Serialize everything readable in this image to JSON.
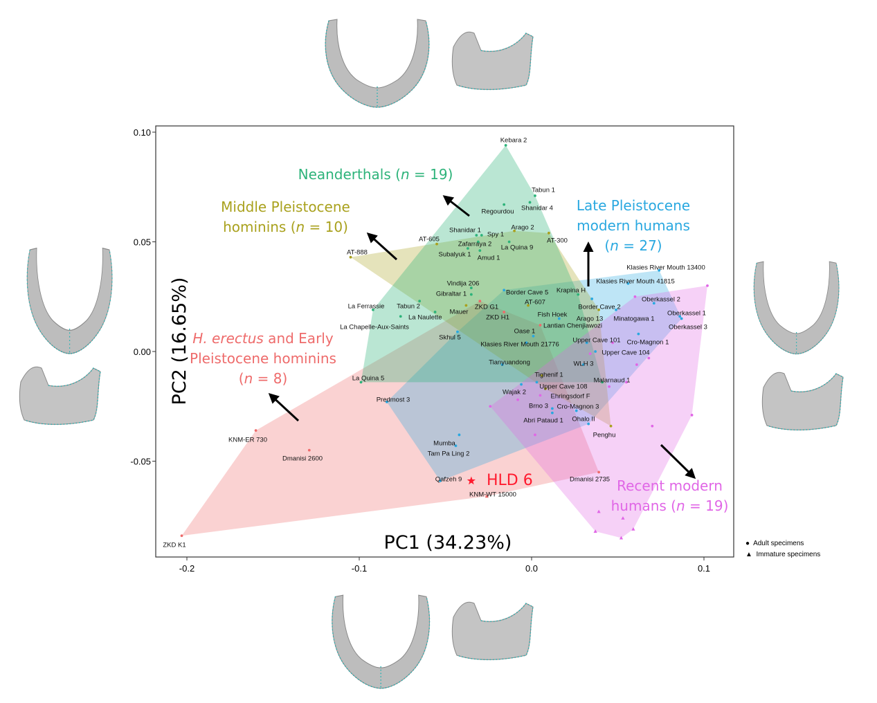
{
  "chart_data": {
    "type": "scatter",
    "xlabel": "PC1 (34.23%)",
    "ylabel": "PC2 (16.65%)",
    "xlim": [
      -0.22,
      0.117
    ],
    "ylim": [
      -0.094,
      0.103
    ],
    "xticks": [
      "-0.2",
      "-0.1",
      "0.0",
      "0.1"
    ],
    "xtick_values": [
      -0.2,
      -0.1,
      0.0,
      0.1
    ],
    "yticks": [
      "-0.05",
      "0.00",
      "0.05",
      "0.10"
    ],
    "ytick_values": [
      -0.05,
      0.0,
      0.05,
      0.1
    ],
    "grid": false,
    "hulls": true,
    "legend": {
      "placement": "bottom-right, outside",
      "entries": [
        {
          "marker": "circle",
          "label": "Adult specimens"
        },
        {
          "marker": "triangle",
          "label": "Immature specimens"
        }
      ]
    },
    "groups": [
      {
        "id": "erectus",
        "label_lines": [
          "H. erectus",
          " and Early",
          "Pleistocene hominins",
          "(n = 8)"
        ],
        "color": "#ee6b6b",
        "points": [
          {
            "name": "ZKD K1",
            "x": -0.203,
            "y": -0.084
          },
          {
            "name": "KNM-ER 730",
            "x": -0.16,
            "y": -0.036
          },
          {
            "name": "Dmanisi 2600",
            "x": -0.129,
            "y": -0.045
          },
          {
            "name": "Dmanisi 2735",
            "x": 0.039,
            "y": -0.055
          },
          {
            "name": "KNM-WT 15000",
            "x": -0.026,
            "y": -0.066,
            "marker": "triangle"
          },
          {
            "name": "ZKD G1",
            "x": -0.03,
            "y": 0.023
          },
          {
            "name": "ZKD H1",
            "x": -0.016,
            "y": 0.018
          },
          {
            "name": "Lantian Chenjiawozi",
            "x": 0.005,
            "y": 0.012
          }
        ]
      },
      {
        "id": "neanderthals",
        "label_lines": [
          "Neanderthals (",
          "n",
          " = 19)"
        ],
        "color": "#2db37a",
        "points": [
          {
            "name": "Kebara 2",
            "x": -0.015,
            "y": 0.094
          },
          {
            "name": "Tabun 1",
            "x": 0.002,
            "y": 0.071
          },
          {
            "name": "Shanidar 4",
            "x": -0.001,
            "y": 0.068
          },
          {
            "name": "Regourdou",
            "x": -0.016,
            "y": 0.067
          },
          {
            "name": "Shanidar 1",
            "x": -0.032,
            "y": 0.053
          },
          {
            "name": "Spy 1",
            "x": -0.029,
            "y": 0.053
          },
          {
            "name": "Zafarraya 2",
            "x": -0.031,
            "y": 0.05
          },
          {
            "name": "La Quina 9",
            "x": -0.013,
            "y": 0.05
          },
          {
            "name": "Subalyuk 1",
            "x": -0.037,
            "y": 0.047
          },
          {
            "name": "Amud 1",
            "x": -0.03,
            "y": 0.046
          },
          {
            "name": "Vindija 206",
            "x": -0.035,
            "y": 0.029
          },
          {
            "name": "Gibraltar 1",
            "x": -0.035,
            "y": 0.026
          },
          {
            "name": "La Ferrassie",
            "x": -0.092,
            "y": 0.019
          },
          {
            "name": "Tabun 2",
            "x": -0.065,
            "y": 0.023
          },
          {
            "name": "La Naulette",
            "x": -0.056,
            "y": 0.018
          },
          {
            "name": "La Chapelle-Aux-Saints",
            "x": -0.076,
            "y": 0.016
          },
          {
            "name": "La Quina 5",
            "x": -0.099,
            "y": -0.014
          },
          {
            "name": "Krapina H",
            "x": 0.027,
            "y": 0.026
          },
          {
            "name": "Malarnaud 1",
            "x": 0.041,
            "y": -0.014
          }
        ]
      },
      {
        "id": "middle_pleistocene",
        "label_lines": [
          "Middle Pleistocene",
          "hominins (n  = 10)"
        ],
        "color": "#a9a11d",
        "points": [
          {
            "name": "AT-888",
            "x": -0.105,
            "y": 0.043
          },
          {
            "name": "AT-605",
            "x": -0.055,
            "y": 0.049
          },
          {
            "name": "Arago 2",
            "x": -0.01,
            "y": 0.055
          },
          {
            "name": "AT-300",
            "x": 0.01,
            "y": 0.054
          },
          {
            "name": "Mauer",
            "x": -0.038,
            "y": 0.021
          },
          {
            "name": "AT-607",
            "x": -0.002,
            "y": 0.021
          },
          {
            "name": "Arago 13",
            "x": 0.039,
            "y": 0.019
          },
          {
            "name": "Tighenif 1",
            "x": 0.006,
            "y": -0.011
          },
          {
            "name": "Penghu",
            "x": 0.046,
            "y": -0.034
          },
          {
            "name": "Ehringsdorf F",
            "x": 0.008,
            "y": -0.017
          }
        ]
      },
      {
        "id": "late_pleistocene_modern",
        "label_lines": [
          "Late Pleistocene",
          "modern humans",
          "(n = 27)"
        ],
        "color": "#29a8e0",
        "points": [
          {
            "name": "Klasies River Mouth 13400",
            "x": 0.074,
            "y": 0.037
          },
          {
            "name": "Klasies River Mouth  41815",
            "x": 0.056,
            "y": 0.031
          },
          {
            "name": "Border Cave 5",
            "x": -0.016,
            "y": 0.028
          },
          {
            "name": "Border Cave 2",
            "x": 0.035,
            "y": 0.024
          },
          {
            "name": "Minatogawa 1",
            "x": 0.049,
            "y": 0.019
          },
          {
            "name": "Oberkassel 2",
            "x": 0.071,
            "y": 0.022
          },
          {
            "name": "Oberkassel 1",
            "x": 0.086,
            "y": 0.016
          },
          {
            "name": "Oberkassel 3",
            "x": 0.087,
            "y": 0.015
          },
          {
            "name": "Fish Hoek",
            "x": 0.016,
            "y": 0.015
          },
          {
            "name": "Oase 1",
            "x": 0.001,
            "y": 0.007
          },
          {
            "name": "Klasies River Mouth  21776",
            "x": -0.003,
            "y": 0.004
          },
          {
            "name": "Upper Cave 101",
            "x": 0.032,
            "y": 0.004
          },
          {
            "name": "Cro-Magnon 1",
            "x": 0.062,
            "y": 0.008
          },
          {
            "name": "Upper Cave 104",
            "x": 0.037,
            "y": 0.0
          },
          {
            "name": "WLH 3",
            "x": 0.03,
            "y": -0.006
          },
          {
            "name": "Tianyuandong",
            "x": -0.017,
            "y": -0.006
          },
          {
            "name": "Upper Cave 108",
            "x": 0.003,
            "y": -0.014
          },
          {
            "name": "Wajak 2",
            "x": -0.006,
            "y": -0.015
          },
          {
            "name": "Brno 3",
            "x": 0.012,
            "y": -0.026
          },
          {
            "name": "Abri Pataud 1",
            "x": 0.012,
            "y": -0.028
          },
          {
            "name": "Cro-Magnon 3",
            "x": 0.026,
            "y": -0.027
          },
          {
            "name": "Ohalo II",
            "x": 0.033,
            "y": -0.033
          },
          {
            "name": "Skhul 5",
            "x": -0.043,
            "y": 0.009
          },
          {
            "name": "Predmost 3",
            "x": -0.084,
            "y": -0.023
          },
          {
            "name": "Mumba",
            "x": -0.042,
            "y": -0.038
          },
          {
            "name": "Tam Pa Ling 2",
            "x": -0.044,
            "y": -0.043
          },
          {
            "name": "Qafzeh 9",
            "x": -0.053,
            "y": -0.059
          }
        ]
      },
      {
        "id": "recent_modern",
        "label_lines": [
          "Recent modern",
          "humans (n = 19)"
        ],
        "color": "#e066e6",
        "points": [
          {
            "x": 0.06,
            "y": 0.025
          },
          {
            "x": 0.102,
            "y": 0.03
          },
          {
            "x": 0.047,
            "y": 0.004
          },
          {
            "x": 0.068,
            "y": -0.003
          },
          {
            "x": 0.061,
            "y": -0.006
          },
          {
            "x": 0.055,
            "y": -0.014
          },
          {
            "x": 0.005,
            "y": -0.02
          },
          {
            "x": -0.008,
            "y": -0.022
          },
          {
            "x": -0.024,
            "y": -0.025
          },
          {
            "x": 0.002,
            "y": -0.038
          },
          {
            "x": 0.093,
            "y": -0.029
          },
          {
            "x": 0.07,
            "y": -0.034
          },
          {
            "x": 0.034,
            "y": -0.001
          },
          {
            "x": 0.045,
            "y": -0.016
          },
          {
            "x": 0.039,
            "y": -0.073,
            "marker": "triangle"
          },
          {
            "x": 0.053,
            "y": -0.076,
            "marker": "triangle"
          },
          {
            "x": 0.037,
            "y": -0.082,
            "marker": "triangle"
          },
          {
            "x": 0.052,
            "y": -0.085,
            "marker": "triangle"
          },
          {
            "x": 0.059,
            "y": -0.081,
            "marker": "triangle"
          }
        ]
      }
    ],
    "highlight": {
      "name": "HLD 6",
      "x": -0.035,
      "y": -0.059,
      "marker": "star",
      "color": "#ff1a2e"
    }
  },
  "annotations": {
    "neanderthals": {
      "pre": "Neanderthals (",
      "n": "n",
      "post": " = 19)"
    },
    "middle": {
      "line1": "Middle Pleistocene",
      "pre": "hominins (",
      "n": "n",
      "post": "  = 10)"
    },
    "late": {
      "line1": "Late Pleistocene",
      "line2": "modern humans",
      "pre": "(",
      "n": "n",
      "post": " = 27)"
    },
    "erectus": {
      "italic": "H. erectus",
      "rest": " and Early",
      "line2": "Pleistocene hominins",
      "pre": "(",
      "n": "n",
      "post": " = 8)"
    },
    "recent": {
      "line1": "Recent modern",
      "pre": "humans (",
      "n": "n",
      "post": " = 19)"
    },
    "hld6": "HLD 6"
  },
  "legend": {
    "adult": "Adult specimens",
    "immature": "Immature specimens"
  },
  "images": [
    "mandible-superior-view",
    "mandible-lateral-view"
  ]
}
